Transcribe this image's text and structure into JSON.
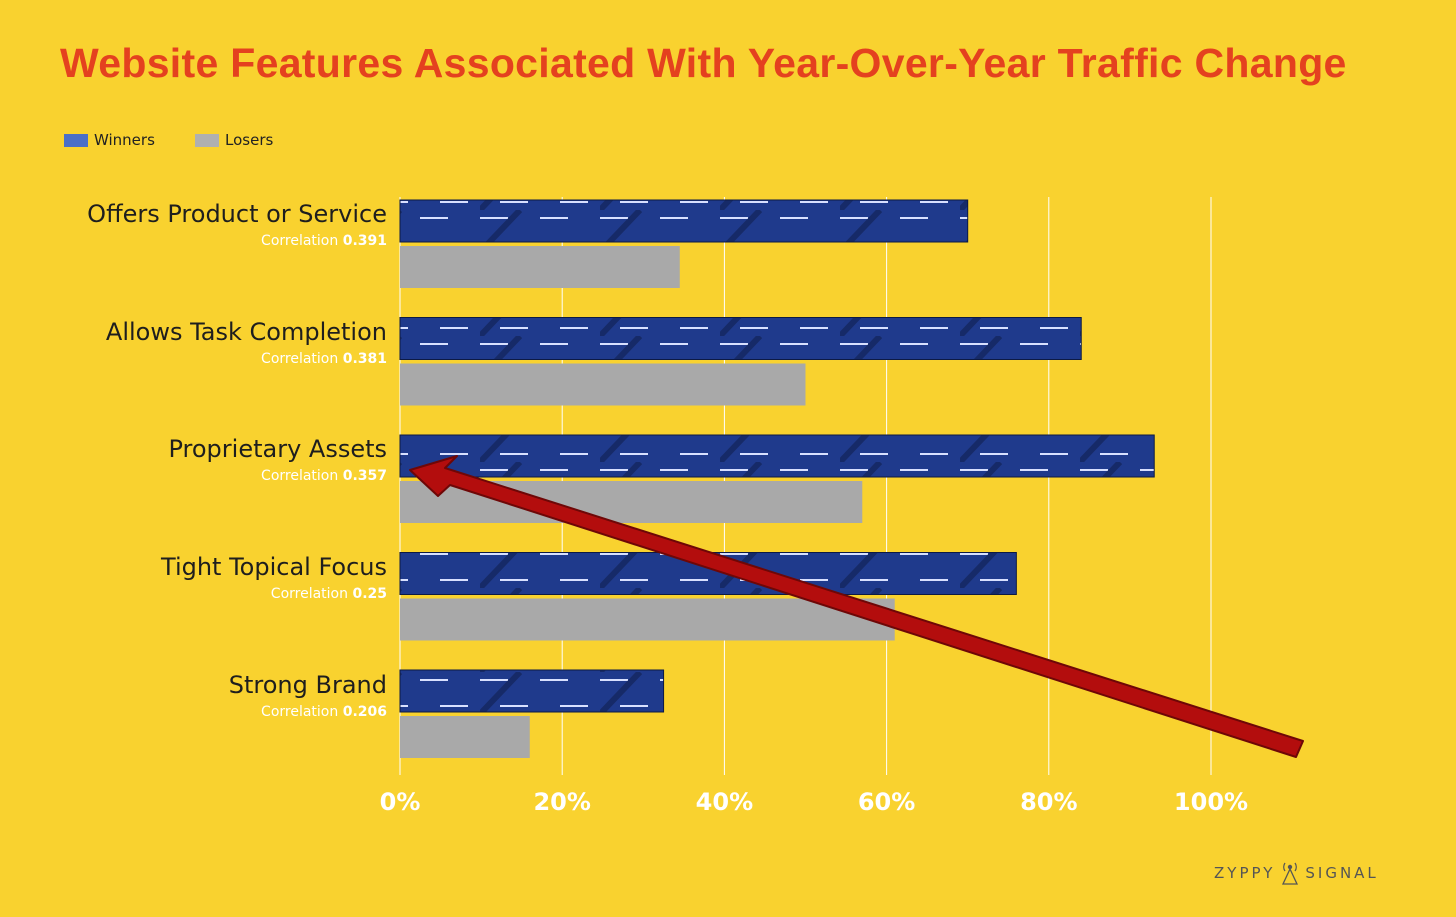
{
  "colors": {
    "background": "#f9d22f",
    "title": "#e4411f",
    "winners": "#1f3a8c",
    "winners_legend": "#4a6fc7",
    "losers": "#a9a9a9",
    "arrow": "#b30d0d",
    "grid": "#ffffff"
  },
  "brand": {
    "left": "ZYPPY",
    "right": "SIGNAL",
    "icon": "signal-tower-icon"
  },
  "chart_data": {
    "type": "bar",
    "orientation": "horizontal",
    "title": "Website Features Associated With Year-Over-Year Traffic Change",
    "legend": [
      {
        "name": "Winners"
      },
      {
        "name": "Losers"
      }
    ],
    "legend_position": "top-left",
    "categories": [
      "Offers Product or Service",
      "Allows Task Completion",
      "Proprietary Assets",
      "Tight Topical Focus",
      "Strong Brand"
    ],
    "correlation_label": "Correlation",
    "correlations": [
      "0.391",
      "0.381",
      "0.357",
      "0.25",
      "0.206"
    ],
    "series": [
      {
        "name": "Winners",
        "values": [
          70,
          84,
          93,
          76,
          32.5
        ]
      },
      {
        "name": "Losers",
        "values": [
          34.5,
          50,
          57,
          61,
          16
        ]
      }
    ],
    "xlim": [
      0,
      100
    ],
    "xticks": [
      "0%",
      "20%",
      "40%",
      "60%",
      "80%",
      "100%"
    ],
    "grid": true,
    "annotation": "arrow pointing to Proprietary Assets"
  }
}
